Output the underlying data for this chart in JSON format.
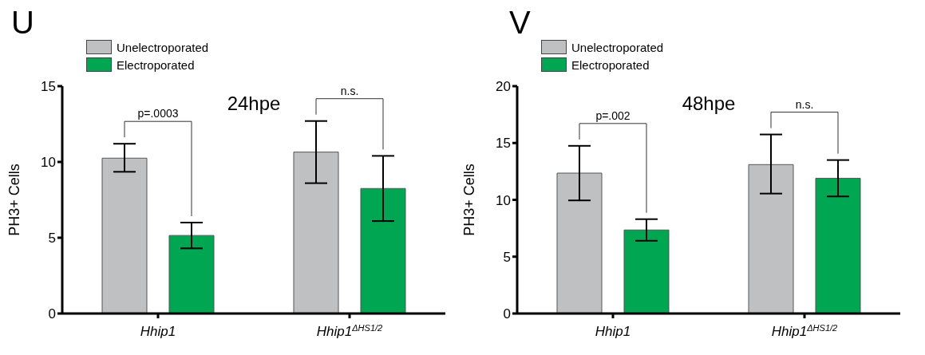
{
  "chart_data": [
    {
      "type": "bar",
      "title": "24hpe",
      "ylabel": "PH3+ Cells",
      "categories": [
        "Hhip1",
        "Hhip1$^{ΔHS1/2}$"
      ],
      "legend": "top left",
      "ylim": [
        0,
        15
      ],
      "yticks": [
        0,
        5,
        10,
        15
      ],
      "series": [
        {
          "name": "Unelectroporated",
          "color": "#bfc0c2",
          "values": [
            10.25,
            10.65
          ],
          "errors": [
            [
              9.35,
              11.2
            ],
            [
              8.6,
              12.7
            ]
          ]
        },
        {
          "name": "Electroporated",
          "color": "#00a651",
          "values": [
            5.15,
            8.25
          ],
          "errors": [
            [
              4.3,
              6.0
            ],
            [
              6.1,
              10.4
            ]
          ]
        }
      ],
      "annotations": [
        "U",
        "p=.0003",
        "n.s."
      ]
    },
    {
      "type": "bar",
      "title": "48hpe",
      "ylabel": "PH3+ Cells",
      "categories": [
        "Hhip1",
        "Hhip1$^{ΔHS1/2}$"
      ],
      "legend": "top left",
      "ylim": [
        0,
        20
      ],
      "yticks": [
        0,
        5,
        10,
        15,
        20
      ],
      "series": [
        {
          "name": "Unelectroporated",
          "color": "#bfc0c2",
          "values": [
            12.35,
            13.1
          ],
          "errors": [
            [
              9.95,
              14.75
            ],
            [
              10.55,
              15.75
            ]
          ]
        },
        {
          "name": "Electroporated",
          "color": "#00a651",
          "values": [
            7.35,
            11.9
          ],
          "errors": [
            [
              6.4,
              8.3
            ],
            [
              10.3,
              13.5
            ]
          ]
        }
      ],
      "annotations": [
        "V",
        "p=.002",
        "n.s."
      ]
    }
  ]
}
